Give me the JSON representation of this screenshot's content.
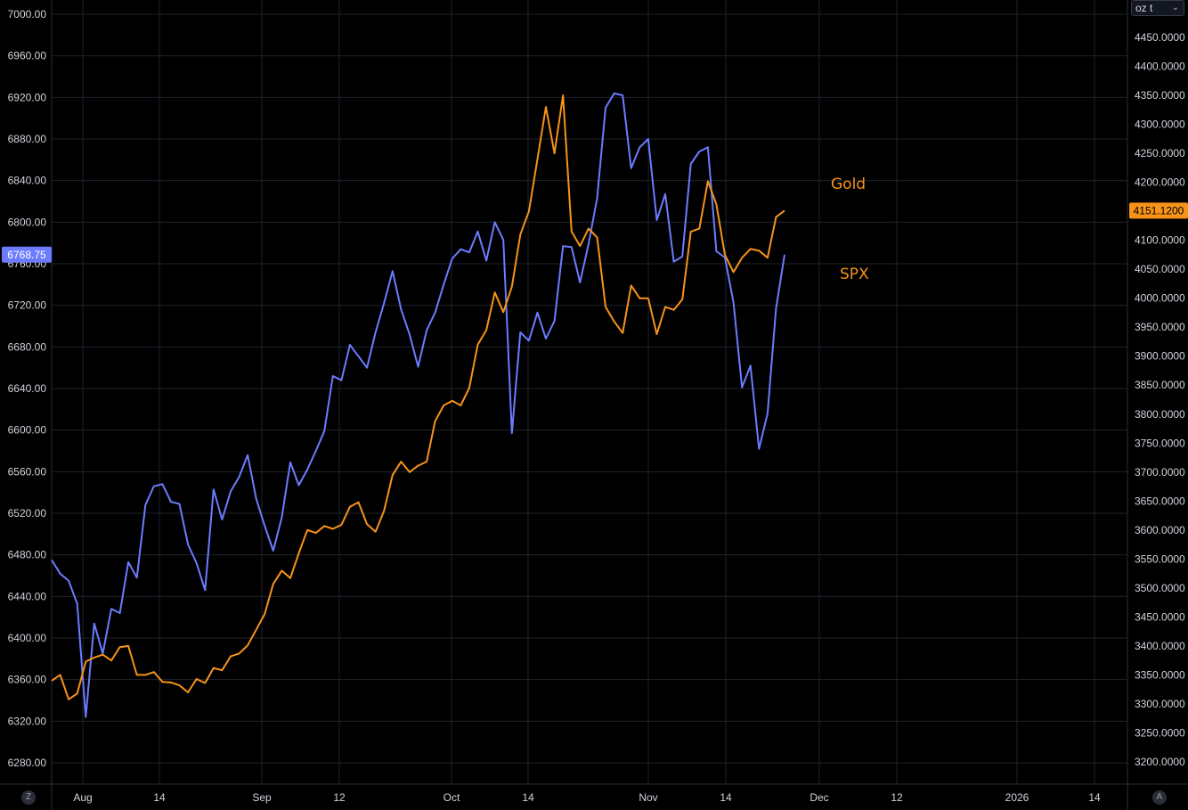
{
  "unit_selector": {
    "value": "oz t",
    "icon": "chevron-down-icon"
  },
  "corner_left": "Z",
  "corner_right": "A",
  "colors": {
    "spx": "#6c7cff",
    "gold": "#f7931a",
    "background": "#000000",
    "grid": "#1e222d"
  },
  "chart_data": {
    "type": "line",
    "x_ticks": [
      "Aug",
      "14",
      "Sep",
      "12",
      "Oct",
      "14",
      "Nov",
      "14",
      "Dec",
      "12",
      "2026",
      "14"
    ],
    "left_axis": {
      "ticks": [
        "7000.00",
        "6960.00",
        "6920.00",
        "6880.00",
        "6840.00",
        "6800.00",
        "6760.00",
        "6720.00",
        "6680.00",
        "6640.00",
        "6600.00",
        "6560.00",
        "6520.00",
        "6480.00",
        "6440.00",
        "6400.00",
        "6360.00",
        "6320.00",
        "6280.00"
      ],
      "range": [
        6280,
        7000
      ],
      "last_value": "6768.75"
    },
    "right_axis": {
      "ticks": [
        "4450.0000",
        "4400.0000",
        "4350.0000",
        "4300.0000",
        "4250.0000",
        "4200.0000",
        "4150.0000",
        "4100.0000",
        "4050.0000",
        "4000.0000",
        "3950.0000",
        "3900.0000",
        "3850.0000",
        "3800.0000",
        "3750.0000",
        "3700.0000",
        "3650.0000",
        "3600.0000",
        "3550.0000",
        "3500.0000",
        "3450.0000",
        "3400.0000",
        "3350.0000",
        "3300.0000",
        "3250.0000",
        "3200.0000"
      ],
      "range": [
        3200,
        4450
      ],
      "last_value": "4151.1200"
    },
    "series": [
      {
        "name": "SPX",
        "axis": "left",
        "values": [
          6475,
          6462,
          6455,
          6433,
          6324,
          6414,
          6385,
          6428,
          6424,
          6473,
          6458,
          6528,
          6546,
          6548,
          6531,
          6529,
          6490,
          6472,
          6446,
          6543,
          6514,
          6541,
          6555,
          6576,
          6534,
          6508,
          6484,
          6516,
          6569,
          6547,
          6562,
          6580,
          6599,
          6652,
          6648,
          6682,
          6671,
          6660,
          6694,
          6722,
          6753,
          6716,
          6692,
          6661,
          6696,
          6713,
          6740,
          6765,
          6774,
          6771,
          6791,
          6763,
          6800,
          6783,
          6597,
          6694,
          6686,
          6713,
          6688,
          6705,
          6777,
          6776,
          6742,
          6779,
          6823,
          6910,
          6924,
          6922,
          6852,
          6872,
          6880,
          6802,
          6827,
          6762,
          6767,
          6856,
          6868,
          6872,
          6772,
          6766,
          6723,
          6641,
          6662,
          6582,
          6616,
          6717,
          6768.75
        ]
      },
      {
        "name": "Gold",
        "axis": "right",
        "values": [
          3340,
          3350,
          3308,
          3318,
          3373,
          3380,
          3385,
          3375,
          3398,
          3400,
          3350,
          3350,
          3355,
          3338,
          3337,
          3332,
          3320,
          3343,
          3336,
          3362,
          3358,
          3382,
          3387,
          3401,
          3428,
          3455,
          3507,
          3530,
          3517,
          3560,
          3600,
          3595,
          3607,
          3602,
          3609,
          3640,
          3648,
          3610,
          3597,
          3633,
          3695,
          3718,
          3700,
          3711,
          3718,
          3788,
          3815,
          3823,
          3815,
          3845,
          3920,
          3945,
          4010,
          3976,
          4020,
          4110,
          4150,
          4240,
          4330,
          4250,
          4350,
          4115,
          4090,
          4120,
          4105,
          3985,
          3960,
          3940,
          4022,
          4000,
          4000,
          3938,
          3985,
          3980,
          3998,
          4115,
          4120,
          4202,
          4162,
          4075,
          4045,
          4070,
          4085,
          4082,
          4070,
          4140,
          4151.12
        ]
      }
    ]
  }
}
